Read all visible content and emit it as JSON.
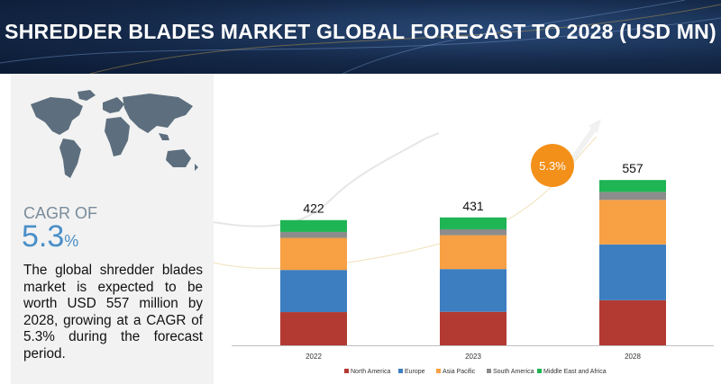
{
  "header": {
    "title": "SHREDDER BLADES MARKET GLOBAL FORECAST TO 2028 (USD MN)"
  },
  "sidebar": {
    "cagr_label": "CAGR OF",
    "cagr_value": "5.3",
    "cagr_unit": "%",
    "summary": "The global shredder blades market is expected to be worth USD 557 million by 2028, growing at a CAGR of 5.3% during the forecast period."
  },
  "colors": {
    "North America": "#b33a32",
    "Europe": "#3d7ec0",
    "Asia Pacific": "#f7a044",
    "South America": "#8c8c8c",
    "Middle East and Africa": "#1fb454",
    "cagr_bubble": "#f39019"
  },
  "chart_data": {
    "type": "bar",
    "stacked": true,
    "categories": [
      "2022",
      "2023",
      "2028"
    ],
    "totals": [
      422,
      431,
      557
    ],
    "series": [
      {
        "name": "North America",
        "values": [
          112,
          113,
          152
        ]
      },
      {
        "name": "Europe",
        "values": [
          142,
          144,
          188
        ]
      },
      {
        "name": "Asia Pacific",
        "values": [
          108,
          114,
          150
        ]
      },
      {
        "name": "South America",
        "values": [
          20,
          20,
          27
        ]
      },
      {
        "name": "Middle East and Africa",
        "values": [
          40,
          40,
          40
        ]
      }
    ],
    "ylim": [
      0,
      600
    ],
    "grid": false,
    "legend": "bottom",
    "annotation": "5.3%"
  }
}
